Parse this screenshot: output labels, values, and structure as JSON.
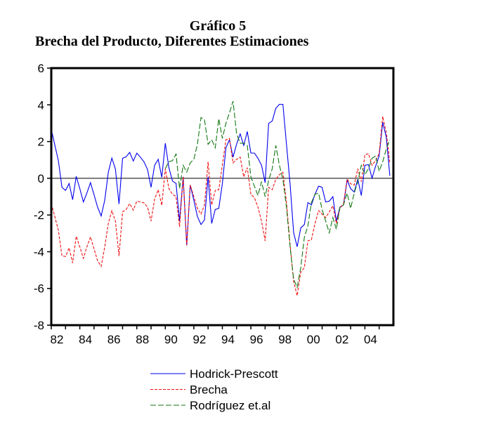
{
  "chart_data": {
    "type": "line",
    "title": "Gráfico 5",
    "subtitle": "Brecha del Producto, Diferentes Estimaciones",
    "xlabel": "",
    "ylabel": "",
    "frequency": "quarterly",
    "start_year": 1982,
    "periods": 96,
    "ylim": [
      -8,
      6
    ],
    "yticks": [
      "6",
      "4",
      "2",
      "0",
      "-2",
      "-4",
      "-6",
      "-8"
    ],
    "ytick_values": [
      6,
      4,
      2,
      0,
      -2,
      -4,
      -6,
      -8
    ],
    "xticks": [
      "82",
      "84",
      "86",
      "88",
      "90",
      "92",
      "94",
      "96",
      "98",
      "00",
      "02",
      "04"
    ],
    "xtick_years": [
      1982,
      1984,
      1986,
      1988,
      1990,
      1992,
      1994,
      1996,
      1998,
      2000,
      2002,
      2004
    ],
    "zero_line": true,
    "legend_position": "bottom",
    "series": [
      {
        "name": "Hodrick-Prescott",
        "color": "#0000ee",
        "dash": "solid",
        "values": [
          2.67,
          1.8,
          0.96,
          -0.5,
          -0.66,
          -0.28,
          -1.17,
          0.11,
          -0.56,
          -1.29,
          -0.8,
          -0.24,
          -0.9,
          -1.57,
          -2.05,
          -1.19,
          0.33,
          1.1,
          0.5,
          -1.4,
          1.09,
          1.17,
          1.41,
          0.94,
          1.37,
          1.15,
          0.9,
          0.48,
          -0.49,
          0.71,
          1.03,
          0.05,
          1.91,
          0.58,
          -0.15,
          -0.28,
          -2.33,
          0.08,
          -3.66,
          -0.37,
          -1.19,
          -2.08,
          -2.52,
          -2.27,
          0.08,
          -2.46,
          -1.7,
          -1.64,
          -0.3,
          1.66,
          2.1,
          1.15,
          1.86,
          2.42,
          1.79,
          2.55,
          1.37,
          1.37,
          1.09,
          0.71,
          -0.24,
          2.99,
          3.12,
          3.81,
          4.03,
          4.03,
          1.85,
          -0.3,
          -2.97,
          -3.73,
          -2.71,
          -2.52,
          -1.32,
          -1.45,
          -0.87,
          -0.43,
          -0.49,
          -1.29,
          -1.25,
          -1.0,
          -2.33,
          -1.57,
          -1.45,
          -0.11,
          -0.56,
          -0.75,
          -0.05,
          -0.94,
          0.71,
          0.74,
          0.01,
          0.65,
          1.22,
          3.05,
          2.23,
          0.14
        ]
      },
      {
        "name": "Brecha",
        "color": "#ee1111",
        "dash": "short",
        "values": [
          -1.38,
          -2.1,
          -2.84,
          -4.23,
          -4.26,
          -3.79,
          -4.61,
          -3.16,
          -3.73,
          -4.36,
          -3.73,
          -3.19,
          -3.85,
          -4.49,
          -4.8,
          -3.73,
          -2.46,
          -1.76,
          -2.33,
          -4.23,
          -1.83,
          -1.7,
          -1.38,
          -1.74,
          -1.25,
          -1.29,
          -1.34,
          -1.57,
          -2.33,
          -1.13,
          -0.62,
          -1.47,
          0.52,
          -0.56,
          -0.87,
          -1.0,
          -2.65,
          0.08,
          -3.66,
          -0.37,
          -1.0,
          -1.64,
          -1.95,
          -1.45,
          0.9,
          -1.45,
          -0.66,
          -0.62,
          0.71,
          2.1,
          2.17,
          0.84,
          1.03,
          1.15,
          0.08,
          0.58,
          -0.87,
          -1.06,
          -1.57,
          -2.33,
          -3.41,
          -0.49,
          -0.62,
          -0.05,
          0.2,
          0.33,
          -1.32,
          -3.6,
          -5.63,
          -6.39,
          -5.12,
          -4.87,
          -3.41,
          -3.35,
          -2.46,
          -1.76,
          -1.95,
          -2.14,
          -1.83,
          -1.5,
          -2.46,
          -1.64,
          -1.38,
          -0.05,
          -0.3,
          -0.37,
          0.52,
          -0.18,
          1.28,
          1.34,
          0.71,
          0.96,
          1.34,
          3.37,
          2.48,
          0.84
        ]
      },
      {
        "name": "Rodríguez et.al",
        "color": "#117711",
        "dash": "long",
        "values": [
          null,
          null,
          null,
          null,
          null,
          null,
          null,
          null,
          null,
          null,
          null,
          null,
          null,
          null,
          null,
          null,
          null,
          null,
          null,
          null,
          null,
          null,
          null,
          null,
          null,
          null,
          null,
          null,
          null,
          null,
          null,
          null,
          0.52,
          0.9,
          0.96,
          1.32,
          -0.56,
          0.71,
          0.33,
          0.84,
          1.03,
          1.85,
          3.31,
          3.18,
          1.85,
          2.1,
          1.66,
          3.24,
          2.17,
          2.99,
          3.56,
          4.2,
          2.42,
          1.91,
          1.91,
          1.79,
          0.08,
          -0.43,
          -0.94,
          -0.18,
          -1.0,
          -0.11,
          0.52,
          1.79,
          0.71,
          -0.05,
          -1.57,
          -3.73,
          -5.5,
          -5.94,
          -4.87,
          -3.22,
          -2.59,
          -1.32,
          -0.87,
          -0.81,
          -1.7,
          -2.33,
          -2.97,
          -2.14,
          -2.78,
          -1.57,
          -1.45,
          -0.81,
          -1.64,
          -0.81,
          -0.18,
          0.71,
          0.2,
          0.52,
          1.09,
          1.22,
          0.39,
          0.9,
          1.6,
          2.1
        ]
      }
    ]
  }
}
